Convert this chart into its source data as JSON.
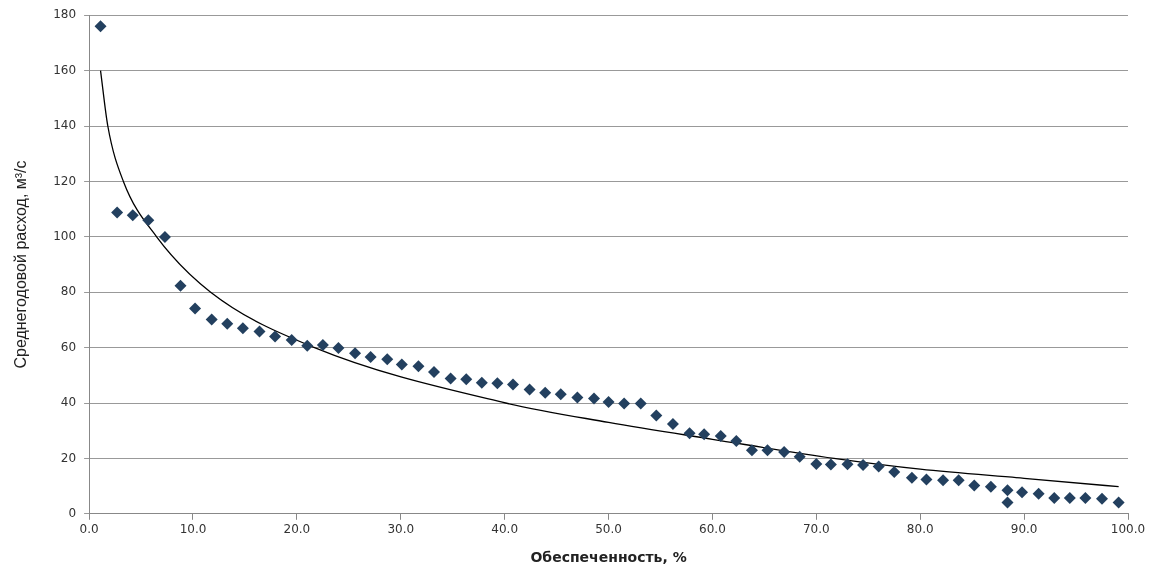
{
  "chart_data": {
    "type": "scatter",
    "xlabel": "Обеспеченность, %",
    "ylabel": "Среднегодовой расход, м³/с",
    "xlim": [
      0,
      100
    ],
    "xticks": [
      {
        "value": 0,
        "label": "0.0"
      },
      {
        "value": 10,
        "label": "10.0"
      },
      {
        "value": 20,
        "label": "20.0"
      },
      {
        "value": 30,
        "label": "30.0"
      },
      {
        "value": 40,
        "label": "40.0"
      },
      {
        "value": 50,
        "label": "50.0"
      },
      {
        "value": 60,
        "label": "60.0"
      },
      {
        "value": 70,
        "label": "70.0"
      },
      {
        "value": 80,
        "label": "80.0"
      },
      {
        "value": 90,
        "label": "90.0"
      },
      {
        "value": 100,
        "label": "100.0"
      }
    ],
    "ylim": [
      0,
      180
    ],
    "yticks": [
      0,
      20,
      40,
      60,
      80,
      100,
      120,
      140,
      160,
      180
    ],
    "grid": "y",
    "legend": false,
    "series": [
      {
        "type": "scatter",
        "marker": "diamond",
        "color": "#23405f",
        "x": [
          1.1,
          2.7,
          4.2,
          5.7,
          7.3,
          8.8,
          10.2,
          11.8,
          13.3,
          14.8,
          16.4,
          17.9,
          19.5,
          21.0,
          22.5,
          24.0,
          25.6,
          27.1,
          28.7,
          30.1,
          31.7,
          33.2,
          34.8,
          36.3,
          37.8,
          39.3,
          40.8,
          42.4,
          43.9,
          45.4,
          47.0,
          48.6,
          50.0,
          51.5,
          53.1,
          54.6,
          56.2,
          57.8,
          59.2,
          60.8,
          62.3,
          63.8,
          65.3,
          66.9,
          68.4,
          70.0,
          71.4,
          73.0,
          74.5,
          76.0,
          77.5,
          79.2,
          80.6,
          82.2,
          83.7,
          85.2,
          86.8,
          88.4,
          88.4,
          89.8,
          91.4,
          92.9,
          94.4,
          95.9,
          97.5,
          99.1
        ],
        "values": [
          176,
          108.8,
          107.8,
          106,
          99.9,
          82.3,
          74.1,
          70.1,
          68.6,
          67,
          65.8,
          64,
          62.7,
          60.7,
          60.9,
          59.9,
          58,
          56.6,
          55.8,
          53.9,
          53.3,
          51.2,
          48.8,
          48.6,
          47.3,
          47.1,
          46.7,
          44.9,
          43.7,
          43.2,
          42,
          41.6,
          40.4,
          39.8,
          39.8,
          35.5,
          32.4,
          29.1,
          28.7,
          28.1,
          26.3,
          22.9,
          22.9,
          22.3,
          20.6,
          18,
          17.8,
          17.9,
          17.6,
          17.1,
          15.1,
          13,
          12.4,
          12.1,
          12.1,
          10.2,
          9.8,
          8.5,
          4.1,
          7.8,
          7.2,
          5.7,
          5.7,
          5.7,
          5.4,
          4.1
        ]
      },
      {
        "type": "line",
        "marker": "none",
        "line_style": "solid",
        "color": "#000000",
        "x": [
          1.1,
          1.8,
          3.3,
          6.5,
          11.7,
          21.7,
          40.1,
          50,
          60,
          71.7,
          80,
          90,
          99.1
        ],
        "values": [
          160,
          140,
          120,
          100,
          80,
          60,
          40,
          33,
          26.9,
          20,
          16.1,
          12.8,
          9.8
        ]
      }
    ]
  }
}
